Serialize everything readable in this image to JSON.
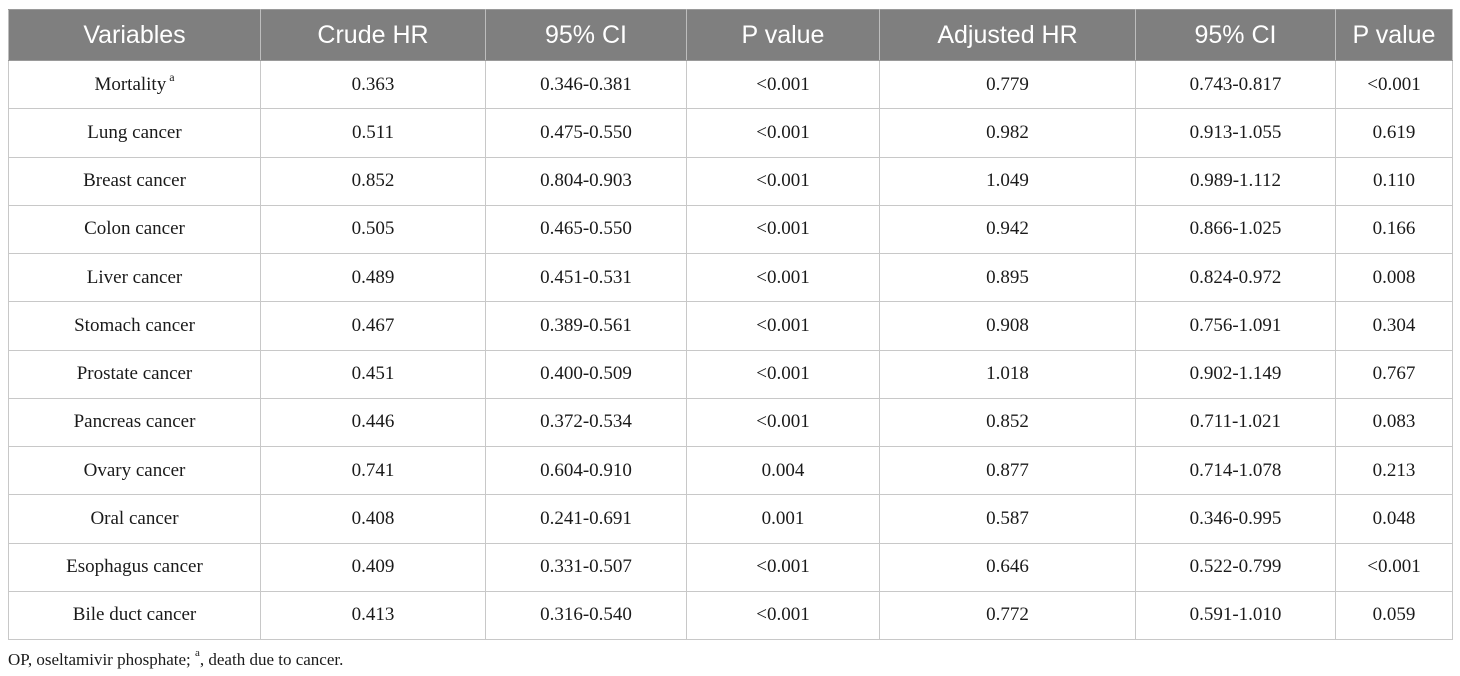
{
  "table": {
    "headers": [
      "Variables",
      "Crude HR",
      "95% CI",
      "P value",
      "Adjusted HR",
      "95% CI",
      "P value"
    ],
    "rows": [
      {
        "variable": "Mortality",
        "superscript": "a",
        "crude_hr": "0.363",
        "crude_ci": "0.346-0.381",
        "crude_p": "<0.001",
        "adj_hr": "0.779",
        "adj_ci": "0.743-0.817",
        "adj_p": "<0.001"
      },
      {
        "variable": "Lung cancer",
        "superscript": "",
        "crude_hr": "0.511",
        "crude_ci": "0.475-0.550",
        "crude_p": "<0.001",
        "adj_hr": "0.982",
        "adj_ci": "0.913-1.055",
        "adj_p": "0.619"
      },
      {
        "variable": "Breast cancer",
        "superscript": "",
        "crude_hr": "0.852",
        "crude_ci": "0.804-0.903",
        "crude_p": "<0.001",
        "adj_hr": "1.049",
        "adj_ci": "0.989-1.112",
        "adj_p": "0.110"
      },
      {
        "variable": "Colon cancer",
        "superscript": "",
        "crude_hr": "0.505",
        "crude_ci": "0.465-0.550",
        "crude_p": "<0.001",
        "adj_hr": "0.942",
        "adj_ci": "0.866-1.025",
        "adj_p": "0.166"
      },
      {
        "variable": "Liver cancer",
        "superscript": "",
        "crude_hr": "0.489",
        "crude_ci": "0.451-0.531",
        "crude_p": "<0.001",
        "adj_hr": "0.895",
        "adj_ci": "0.824-0.972",
        "adj_p": "0.008"
      },
      {
        "variable": "Stomach cancer",
        "superscript": "",
        "crude_hr": "0.467",
        "crude_ci": "0.389-0.561",
        "crude_p": "<0.001",
        "adj_hr": "0.908",
        "adj_ci": "0.756-1.091",
        "adj_p": "0.304"
      },
      {
        "variable": "Prostate cancer",
        "superscript": "",
        "crude_hr": "0.451",
        "crude_ci": "0.400-0.509",
        "crude_p": "<0.001",
        "adj_hr": "1.018",
        "adj_ci": "0.902-1.149",
        "adj_p": "0.767"
      },
      {
        "variable": "Pancreas cancer",
        "superscript": "",
        "crude_hr": "0.446",
        "crude_ci": "0.372-0.534",
        "crude_p": "<0.001",
        "adj_hr": "0.852",
        "adj_ci": "0.711-1.021",
        "adj_p": "0.083"
      },
      {
        "variable": "Ovary cancer",
        "superscript": "",
        "crude_hr": "0.741",
        "crude_ci": "0.604-0.910",
        "crude_p": "0.004",
        "adj_hr": "0.877",
        "adj_ci": "0.714-1.078",
        "adj_p": "0.213"
      },
      {
        "variable": "Oral cancer",
        "superscript": "",
        "crude_hr": "0.408",
        "crude_ci": "0.241-0.691",
        "crude_p": "0.001",
        "adj_hr": "0.587",
        "adj_ci": "0.346-0.995",
        "adj_p": "0.048"
      },
      {
        "variable": "Esophagus cancer",
        "superscript": "",
        "crude_hr": "0.409",
        "crude_ci": "0.331-0.507",
        "crude_p": "<0.001",
        "adj_hr": "0.646",
        "adj_ci": "0.522-0.799",
        "adj_p": "<0.001"
      },
      {
        "variable": "Bile duct cancer",
        "superscript": "",
        "crude_hr": "0.413",
        "crude_ci": "0.316-0.540",
        "crude_p": "<0.001",
        "adj_hr": "0.772",
        "adj_ci": "0.591-1.010",
        "adj_p": "0.059"
      }
    ]
  },
  "footnote": {
    "part1": "OP, oseltamivir phosphate; ",
    "mark": "a",
    "part2": ", death due to cancer."
  },
  "colors": {
    "header_bg": "#7f7f7f",
    "header_text": "#ffffff",
    "grid": "#c8c8c8"
  }
}
